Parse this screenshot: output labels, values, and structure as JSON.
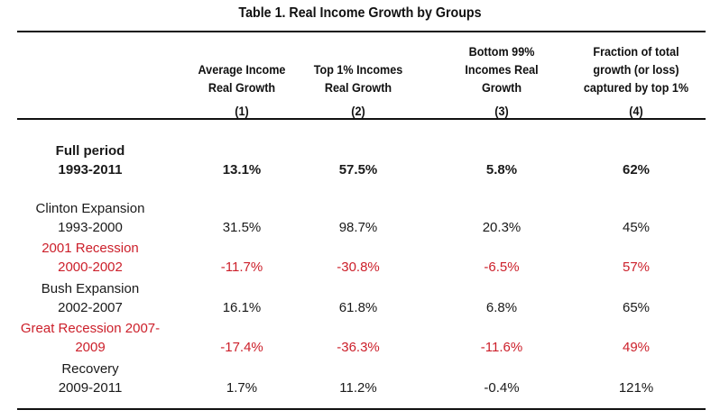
{
  "title": "Table 1. Real Income Growth by Groups",
  "colors": {
    "recession_red": "#cc1f2a",
    "text": "#1a1a1a"
  },
  "columns": [
    {
      "header": [
        "Average Income",
        "Real Growth"
      ],
      "number": "(1)"
    },
    {
      "header": [
        "Top 1% Incomes",
        "Real Growth"
      ],
      "number": "(2)"
    },
    {
      "header": [
        "Bottom 99%",
        "Incomes Real",
        "Growth"
      ],
      "number": "(3)"
    },
    {
      "header": [
        "Fraction of total",
        "growth (or loss)",
        "captured by top 1%"
      ],
      "number": "(4)"
    }
  ],
  "rows": [
    {
      "label_line1": "Full period",
      "label_line2": "1993-2011",
      "style": "bold",
      "values": [
        "13.1%",
        "57.5%",
        "5.8%",
        "62%"
      ]
    },
    {
      "label_line1": "Clinton Expansion",
      "label_line2": "1993-2000",
      "style": "normal",
      "values": [
        "31.5%",
        "98.7%",
        "20.3%",
        "45%"
      ]
    },
    {
      "label_line1": "2001 Recession",
      "label_line2": "2000-2002",
      "style": "red",
      "values": [
        "-11.7%",
        "-30.8%",
        "-6.5%",
        "57%"
      ]
    },
    {
      "label_line1": "Bush Expansion",
      "label_line2": "2002-2007",
      "style": "normal",
      "values": [
        "16.1%",
        "61.8%",
        "6.8%",
        "65%"
      ]
    },
    {
      "label_line1": "Great Recession 2007-",
      "label_line2": "2009",
      "style": "red",
      "values": [
        "-17.4%",
        "-36.3%",
        "-11.6%",
        "49%"
      ]
    },
    {
      "label_line1": "Recovery",
      "label_line2": "2009-2011",
      "style": "normal",
      "values": [
        "1.7%",
        "11.2%",
        "-0.4%",
        "121%"
      ]
    }
  ]
}
